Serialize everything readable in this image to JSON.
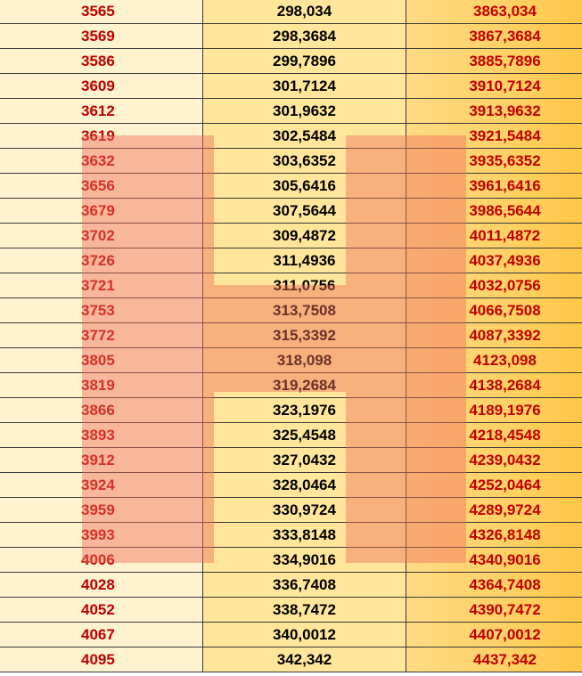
{
  "rows": [
    {
      "a": "3565",
      "b": "298,034",
      "c": "3863,034"
    },
    {
      "a": "3569",
      "b": "298,3684",
      "c": "3867,3684"
    },
    {
      "a": "3586",
      "b": "299,7896",
      "c": "3885,7896"
    },
    {
      "a": "3609",
      "b": "301,7124",
      "c": "3910,7124"
    },
    {
      "a": "3612",
      "b": "301,9632",
      "c": "3913,9632"
    },
    {
      "a": "3619",
      "b": "302,5484",
      "c": "3921,5484"
    },
    {
      "a": "3632",
      "b": "303,6352",
      "c": "3935,6352"
    },
    {
      "a": "3656",
      "b": "305,6416",
      "c": "3961,6416"
    },
    {
      "a": "3679",
      "b": "307,5644",
      "c": "3986,5644"
    },
    {
      "a": "3702",
      "b": "309,4872",
      "c": "4011,4872"
    },
    {
      "a": "3726",
      "b": "311,4936",
      "c": "4037,4936"
    },
    {
      "a": "3721",
      "b": "311,0756",
      "c": "4032,0756"
    },
    {
      "a": "3753",
      "b": "313,7508",
      "c": "4066,7508"
    },
    {
      "a": "3772",
      "b": "315,3392",
      "c": "4087,3392"
    },
    {
      "a": "3805",
      "b": "318,098",
      "c": "4123,098"
    },
    {
      "a": "3819",
      "b": "319,2684",
      "c": "4138,2684"
    },
    {
      "a": "3866",
      "b": "323,1976",
      "c": "4189,1976"
    },
    {
      "a": "3893",
      "b": "325,4548",
      "c": "4218,4548"
    },
    {
      "a": "3912",
      "b": "327,0432",
      "c": "4239,0432"
    },
    {
      "a": "3924",
      "b": "328,0464",
      "c": "4252,0464"
    },
    {
      "a": "3959",
      "b": "330,9724",
      "c": "4289,9724"
    },
    {
      "a": "3993",
      "b": "333,8148",
      "c": "4326,8148"
    },
    {
      "a": "4006",
      "b": "334,9016",
      "c": "4340,9016"
    },
    {
      "a": "4028",
      "b": "336,7408",
      "c": "4364,7408"
    },
    {
      "a": "4052",
      "b": "338,7472",
      "c": "4390,7472"
    },
    {
      "a": "4067",
      "b": "340,0012",
      "c": "4407,0012"
    },
    {
      "a": "4095",
      "b": "342,342",
      "c": "4437,342"
    }
  ],
  "colors": {
    "col1_bg": "#fff2cf",
    "col2_bg": "#ffe69a",
    "col3_bg": "#ffd166",
    "red_text": "#c00000",
    "black_text": "#000000",
    "watermark": "#f06e5a"
  },
  "watermark": {
    "icon": "hh-logo-watermark"
  }
}
